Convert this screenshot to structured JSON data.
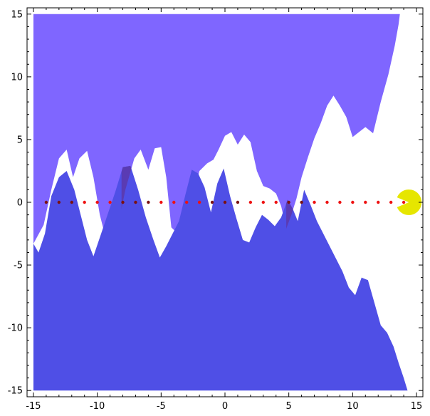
{
  "chart_data": {
    "type": "area",
    "title": "",
    "xlabel": "",
    "ylabel": "",
    "xlim": [
      -15.5,
      15.5
    ],
    "ylim": [
      -15.5,
      15.5
    ],
    "x_ticks": [
      -15,
      -10,
      -5,
      0,
      5,
      10,
      15
    ],
    "y_ticks": [
      -15,
      -10,
      -5,
      0,
      5,
      10,
      15
    ],
    "x_tick_labels": [
      "-15",
      "-10",
      "-5",
      "0",
      "5",
      "10",
      "15"
    ],
    "y_tick_labels": [
      "-15",
      "-10",
      "-5",
      "0",
      "5",
      "10",
      "15"
    ],
    "grid": false,
    "legend": "none",
    "series": [
      {
        "kind": "upper-fill",
        "color": "#7f66ff",
        "fill_to": 15,
        "x": [
          -15,
          -14.2,
          -13.6,
          -13.0,
          -12.4,
          -11.9,
          -11.4,
          -10.8,
          -10.3,
          -9.8,
          -9.3,
          -8.9,
          -8.5,
          -7.8,
          -7.1,
          -6.6,
          -6.0,
          -5.5,
          -5.0,
          -4.6,
          -4.2,
          -3.7,
          -3.2,
          -2.6,
          -2.0,
          -1.4,
          -0.9,
          -0.5,
          0.0,
          0.5,
          1.0,
          1.5,
          2.0,
          2.5,
          3.0,
          3.5,
          4.0,
          4.4,
          4.8,
          5.2,
          5.6,
          6.0,
          6.5,
          7.0,
          7.5,
          8.0,
          8.5,
          9.0,
          9.5,
          10.0,
          10.5,
          11.0,
          11.6,
          12.2,
          12.8,
          13.3,
          13.6,
          13.7
        ],
        "lower": [
          -3.3,
          -1.8,
          1.0,
          3.5,
          4.2,
          2.0,
          3.5,
          4.1,
          2.0,
          -1.0,
          -3.0,
          -3.3,
          -2.5,
          1.0,
          3.5,
          4.2,
          2.6,
          4.3,
          4.4,
          2.0,
          -2.0,
          -2.5,
          -2.3,
          0.2,
          2.5,
          3.1,
          3.4,
          4.2,
          5.3,
          5.6,
          4.6,
          5.4,
          4.8,
          2.5,
          1.3,
          1.1,
          0.7,
          -0.3,
          -2.1,
          -1.0,
          0.3,
          2.0,
          3.6,
          5.1,
          6.3,
          7.7,
          8.5,
          7.7,
          6.8,
          5.2,
          5.6,
          6.0,
          5.5,
          8.0,
          10.2,
          12.5,
          14.2,
          15.0
        ]
      },
      {
        "kind": "lower-fill",
        "color": "#4f4fe6",
        "fill_to": -15,
        "x": [
          -15,
          -14.6,
          -14.1,
          -13.6,
          -13.0,
          -12.4,
          -11.8,
          -11.3,
          -10.8,
          -10.3,
          -9.8,
          -9.2,
          -8.6,
          -8.0,
          -7.4,
          -6.8,
          -6.2,
          -5.6,
          -5.1,
          -4.6,
          -4.1,
          -3.6,
          -3.1,
          -2.6,
          -2.1,
          -1.6,
          -1.1,
          -0.6,
          -0.1,
          0.4,
          0.9,
          1.4,
          1.9,
          2.4,
          2.9,
          3.4,
          3.9,
          4.4,
          4.9,
          5.3,
          5.7,
          6.2,
          6.7,
          7.2,
          7.7,
          8.2,
          8.7,
          9.2,
          9.7,
          10.2,
          10.7,
          11.2,
          11.7,
          12.2,
          12.7,
          13.2,
          13.6,
          14.0,
          14.3
        ],
        "upper": [
          -3.3,
          -4.0,
          -2.5,
          0.5,
          2.0,
          2.5,
          1.0,
          -1.0,
          -3.0,
          -4.3,
          -2.8,
          -1.0,
          0.8,
          2.8,
          2.9,
          1.0,
          -1.2,
          -3.0,
          -4.4,
          -3.5,
          -2.5,
          -1.5,
          0.6,
          2.6,
          2.3,
          1.2,
          -0.8,
          1.5,
          2.7,
          0.5,
          -1.3,
          -3.0,
          -3.2,
          -2.0,
          -1.0,
          -1.4,
          -1.9,
          -1.2,
          0.2,
          -0.5,
          -1.5,
          1.0,
          -0.2,
          -1.5,
          -2.5,
          -3.5,
          -4.5,
          -5.5,
          -6.8,
          -7.4,
          -6.0,
          -6.2,
          -8.0,
          -9.8,
          -10.4,
          -11.5,
          -12.8,
          -14.0,
          -15.0
        ]
      },
      {
        "kind": "band",
        "color": "#5a3bb3",
        "x_ranges": [
          [
            -15,
            -11.9
          ],
          [
            -8.1,
            -5.6
          ],
          [
            -1.1,
            1.3
          ],
          [
            4.8,
            6.9
          ]
        ]
      }
    ],
    "dots": {
      "color": "#ee1111",
      "dark_color": "#7a1111",
      "y": 0,
      "x": [
        -14,
        -13,
        -12,
        -11,
        -10,
        -9,
        -8,
        -7,
        -6,
        -5,
        -4,
        -3,
        -2,
        -1,
        0,
        1,
        2,
        3,
        4,
        5,
        6,
        7,
        8,
        9,
        10,
        11,
        12,
        13,
        14
      ]
    },
    "pacman": {
      "color": "#e6e600",
      "x": 14.4,
      "y": 0,
      "radius_data": 1.0,
      "mouth_angle_deg": 45
    }
  }
}
